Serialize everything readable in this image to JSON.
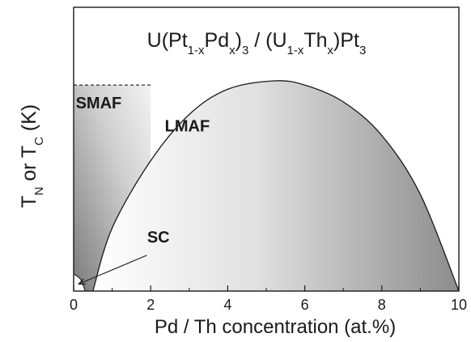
{
  "chart_data": {
    "type": "area",
    "title": {
      "parts": [
        {
          "text": "U(Pt",
          "sub": false
        },
        {
          "text": "1-x",
          "sub": true
        },
        {
          "text": "Pd",
          "sub": false
        },
        {
          "text": "x",
          "sub": true
        },
        {
          "text": ")",
          "sub": false
        },
        {
          "text": "3",
          "sub": true
        },
        {
          "text": " / (U",
          "sub": false
        },
        {
          "text": "1-x",
          "sub": true
        },
        {
          "text": "Th",
          "sub": false
        },
        {
          "text": "x",
          "sub": true
        },
        {
          "text": ")Pt",
          "sub": false
        },
        {
          "text": "3",
          "sub": true
        }
      ]
    },
    "xlabel": "Pd / Th concentration (at.%)",
    "ylabel": {
      "parts": [
        {
          "text": "T",
          "sub": false
        },
        {
          "text": "N",
          "sub": true
        },
        {
          "text": " or T",
          "sub": false
        },
        {
          "text": "C",
          "sub": true
        },
        {
          "text": " (K)",
          "sub": false
        }
      ]
    },
    "xlim": [
      0,
      10
    ],
    "ylim": [
      0,
      1
    ],
    "xticks": [
      0,
      2,
      4,
      6,
      8,
      10
    ],
    "xtick_labels": [
      "0",
      "2",
      "4",
      "6",
      "8",
      "10"
    ],
    "y_tick_labels_shown": false,
    "grid": false,
    "regions": [
      {
        "name": "SMAF",
        "label": "SMAF",
        "shape": "rectangle",
        "x_range": [
          0,
          2
        ],
        "y_top": 0.98,
        "top_edge": "dashed",
        "fill": "gradient-gray"
      },
      {
        "name": "LMAF",
        "label": "LMAF",
        "shape": "dome",
        "points": [
          [
            0.5,
            0
          ],
          [
            1,
            0.3
          ],
          [
            2,
            0.62
          ],
          [
            3,
            0.84
          ],
          [
            4,
            0.96
          ],
          [
            5.2,
            1.0
          ],
          [
            6,
            0.98
          ],
          [
            7,
            0.9
          ],
          [
            8,
            0.74
          ],
          [
            9,
            0.46
          ],
          [
            10,
            0
          ]
        ],
        "fill": "gradient-gray"
      },
      {
        "name": "SC",
        "label": "SC",
        "shape": "dome",
        "points": [
          [
            0,
            0.08
          ],
          [
            0.1,
            0.07
          ],
          [
            0.2,
            0.05
          ],
          [
            0.3,
            0.0
          ]
        ],
        "fill": "white",
        "annotation": "arrow"
      }
    ],
    "colors": {
      "line": "#1a1a1a",
      "gradient_light": "#ffffff",
      "gradient_dark": "#8c8c8c"
    }
  }
}
